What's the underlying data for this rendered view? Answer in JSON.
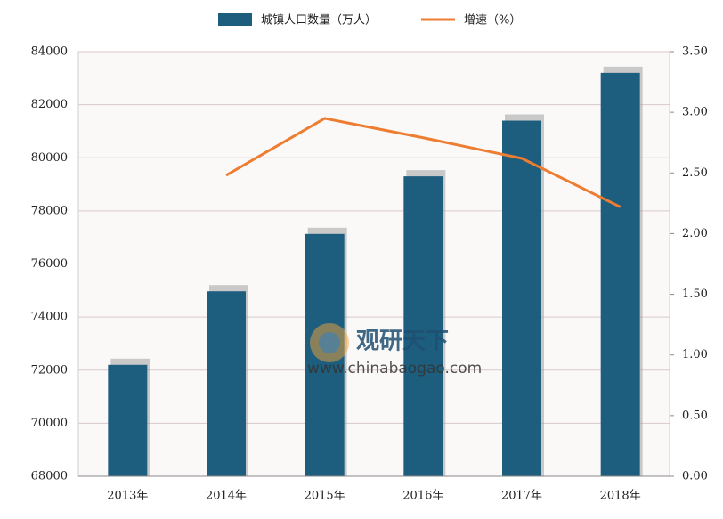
{
  "chart_data": {
    "type": "bar-line",
    "categories": [
      "2013年",
      "2014年",
      "2015年",
      "2016年",
      "2017年",
      "2018年"
    ],
    "series": [
      {
        "name": "城镇人口数量（万人）",
        "color": "#1d5e7e",
        "type": "bar",
        "values": [
          72200,
          74970,
          77130,
          79300,
          81400,
          83200
        ]
      },
      {
        "name": "增速（%）",
        "color": "#ed7d31",
        "type": "line",
        "axis": "y2",
        "values": [
          null,
          2.48,
          2.95,
          2.79,
          2.62,
          2.22
        ]
      }
    ],
    "ylim": [
      68000,
      84000
    ],
    "yticks": [
      68000,
      70000,
      72000,
      74000,
      76000,
      78000,
      80000,
      82000,
      84000
    ],
    "y2lim": [
      0,
      3.5
    ],
    "y2ticks": [
      {
        "value": 0,
        "label": "0.00"
      },
      {
        "value": 0.5,
        "label": "0.50"
      },
      {
        "value": 1,
        "label": "1.00"
      },
      {
        "value": 1.5,
        "label": "1.50"
      },
      {
        "value": 2,
        "label": "2.00"
      },
      {
        "value": 2.5,
        "label": "2.50"
      },
      {
        "value": 3,
        "label": "3.00"
      },
      {
        "value": 3.5,
        "label": "3.50"
      }
    ],
    "grid": true,
    "legend": "top",
    "watermark_title": "观研天下",
    "watermark_url": "www.chinabaogao.com"
  }
}
